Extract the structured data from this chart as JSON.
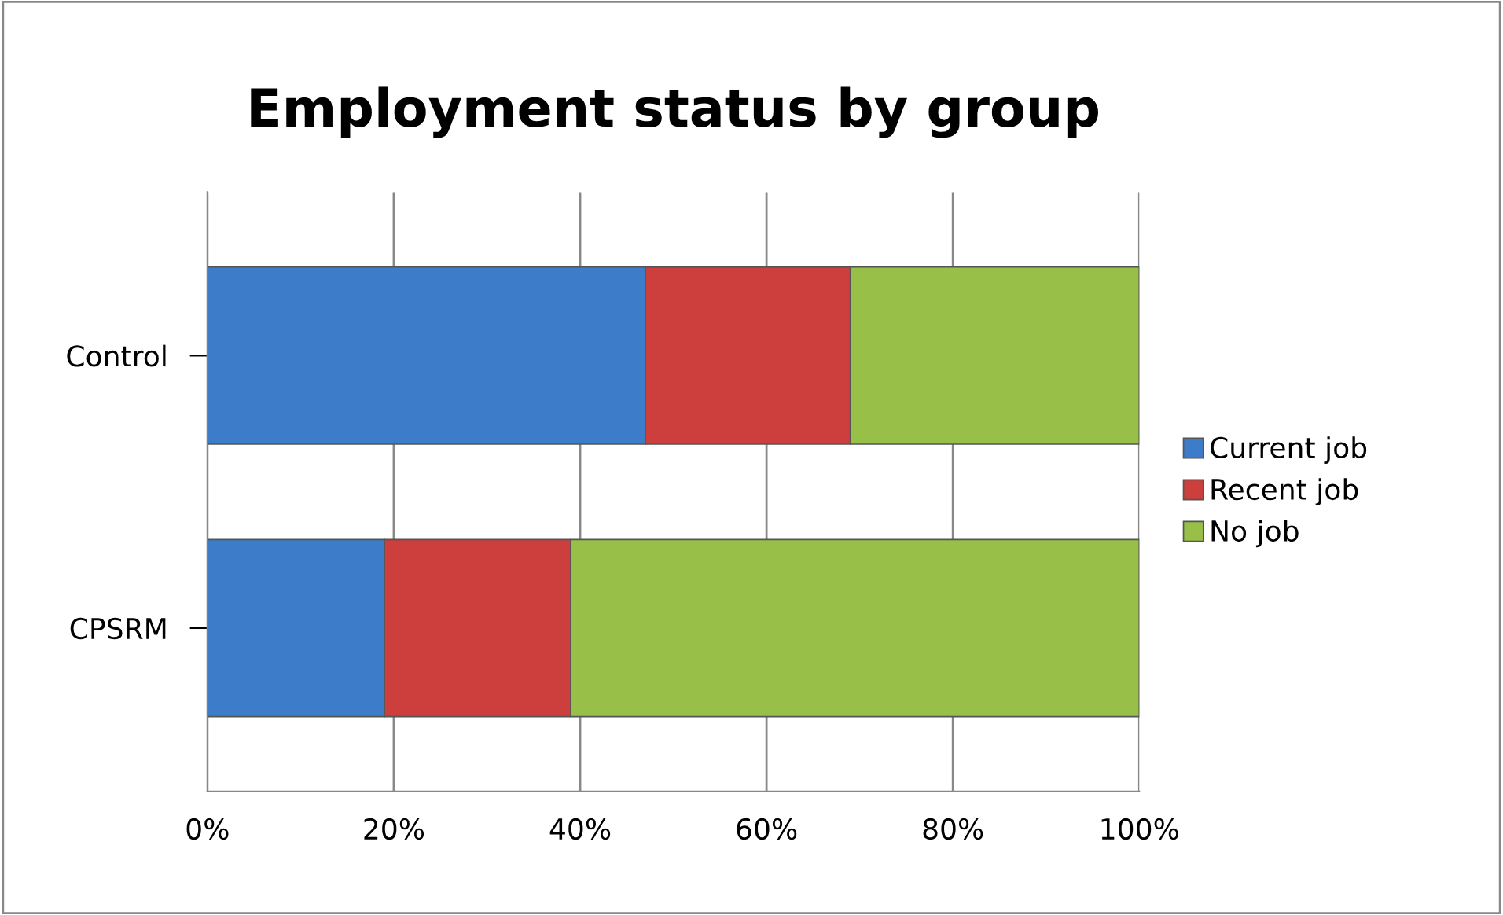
{
  "chart_data": {
    "type": "bar",
    "orientation": "horizontal",
    "stacked": true,
    "title": "Employment status by group",
    "categories": [
      "Control",
      "CPSRM"
    ],
    "series": [
      {
        "name": "Current job",
        "color": "#3d7cc9",
        "values": [
          47,
          19
        ]
      },
      {
        "name": "Recent job",
        "color": "#cc3f3c",
        "values": [
          22,
          20
        ]
      },
      {
        "name": "No job",
        "color": "#98bf47",
        "values": [
          31,
          61
        ]
      }
    ],
    "xlim": [
      0,
      100
    ],
    "xticks": [
      {
        "value": 0,
        "label": "0%"
      },
      {
        "value": 20,
        "label": "20%"
      },
      {
        "value": 40,
        "label": "40%"
      },
      {
        "value": 60,
        "label": "60%"
      },
      {
        "value": 80,
        "label": "80%"
      },
      {
        "value": 100,
        "label": "100%"
      }
    ],
    "grid": "x",
    "legend": "right"
  }
}
